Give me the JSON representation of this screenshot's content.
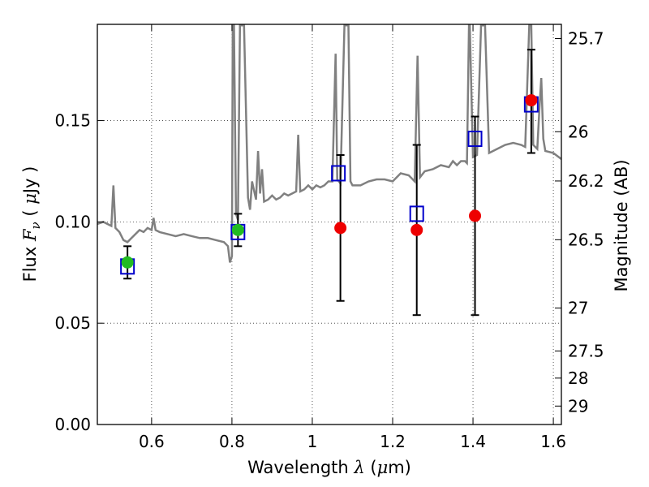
{
  "chart_data": {
    "type": "scatter",
    "xlabel": {
      "prefix": "Wavelength ",
      "symbol": "λ",
      "unit_open": " (",
      "unit_mu": "μ",
      "unit_rest": "m)"
    },
    "ylabel": {
      "prefix": "Flux ",
      "symbol": "F",
      "subscript": "ν",
      "unit_open": " ( ",
      "unit_mu": "μ",
      "unit_rest": "Jy )"
    },
    "y2label": "Magnitude (AB)",
    "xlim": [
      0.465,
      1.62
    ],
    "ylim": [
      0.0,
      0.1975
    ],
    "grid": true,
    "xticks": [
      0.6,
      0.8,
      1.0,
      1.2,
      1.4,
      1.6
    ],
    "xtick_labels": [
      "0.6",
      "0.8",
      "1",
      "1.2",
      "1.4",
      "1.6"
    ],
    "yticks": [
      0.0,
      0.05,
      0.1,
      0.15
    ],
    "ytick_labels": [
      "0.00",
      "0.05",
      "0.10",
      "0.15"
    ],
    "y2ticks": [
      {
        "label": "25.7",
        "flux": 0.1905
      },
      {
        "label": "26",
        "flux": 0.1445
      },
      {
        "label": "26.2",
        "flux": 0.1202
      },
      {
        "label": "26.5",
        "flux": 0.0912
      },
      {
        "label": "27",
        "flux": 0.0575
      },
      {
        "label": "27.5",
        "flux": 0.0363
      },
      {
        "label": "28",
        "flux": 0.0229
      },
      {
        "label": "29",
        "flux": 0.0091
      }
    ],
    "colors": {
      "template": "#808080",
      "model_box": "#0000cc",
      "observed_red": "#ee0000",
      "observed_green": "#22bb22",
      "errorbar": "#000000",
      "grid": "#333333"
    },
    "model_points": [
      {
        "x": 0.54,
        "y": 0.078
      },
      {
        "x": 0.815,
        "y": 0.095
      },
      {
        "x": 1.065,
        "y": 0.124
      },
      {
        "x": 1.26,
        "y": 0.104
      },
      {
        "x": 1.405,
        "y": 0.141
      },
      {
        "x": 1.545,
        "y": 0.158
      }
    ],
    "observed_points": [
      {
        "x": 0.54,
        "y": 0.08,
        "err_lo": 0.072,
        "err_hi": 0.088,
        "color": "green"
      },
      {
        "x": 0.815,
        "y": 0.096,
        "err_lo": 0.088,
        "err_hi": 0.104,
        "color": "green"
      },
      {
        "x": 1.07,
        "y": 0.097,
        "err_lo": 0.061,
        "err_hi": 0.133,
        "color": "red"
      },
      {
        "x": 1.26,
        "y": 0.096,
        "err_lo": 0.054,
        "err_hi": 0.138,
        "color": "red"
      },
      {
        "x": 1.405,
        "y": 0.103,
        "err_lo": 0.054,
        "err_hi": 0.152,
        "color": "red"
      },
      {
        "x": 1.545,
        "y": 0.16,
        "err_lo": 0.134,
        "err_hi": 0.185,
        "color": "red"
      }
    ],
    "template_spectrum": [
      [
        0.465,
        0.099
      ],
      [
        0.48,
        0.1
      ],
      [
        0.5,
        0.098
      ],
      [
        0.505,
        0.118
      ],
      [
        0.51,
        0.097
      ],
      [
        0.52,
        0.095
      ],
      [
        0.53,
        0.091
      ],
      [
        0.54,
        0.09
      ],
      [
        0.55,
        0.092
      ],
      [
        0.56,
        0.094
      ],
      [
        0.57,
        0.096
      ],
      [
        0.58,
        0.095
      ],
      [
        0.59,
        0.097
      ],
      [
        0.6,
        0.096
      ],
      [
        0.605,
        0.102
      ],
      [
        0.61,
        0.096
      ],
      [
        0.62,
        0.095
      ],
      [
        0.64,
        0.094
      ],
      [
        0.66,
        0.093
      ],
      [
        0.68,
        0.094
      ],
      [
        0.7,
        0.093
      ],
      [
        0.72,
        0.092
      ],
      [
        0.74,
        0.092
      ],
      [
        0.76,
        0.091
      ],
      [
        0.78,
        0.09
      ],
      [
        0.79,
        0.088
      ],
      [
        0.795,
        0.08
      ],
      [
        0.8,
        0.083
      ],
      [
        0.802,
        0.197
      ],
      [
        0.805,
        0.197
      ],
      [
        0.81,
        0.104
      ],
      [
        0.815,
        0.101
      ],
      [
        0.82,
        0.197
      ],
      [
        0.83,
        0.197
      ],
      [
        0.84,
        0.112
      ],
      [
        0.845,
        0.106
      ],
      [
        0.85,
        0.12
      ],
      [
        0.86,
        0.111
      ],
      [
        0.865,
        0.135
      ],
      [
        0.87,
        0.114
      ],
      [
        0.875,
        0.126
      ],
      [
        0.88,
        0.11
      ],
      [
        0.89,
        0.111
      ],
      [
        0.9,
        0.113
      ],
      [
        0.91,
        0.111
      ],
      [
        0.92,
        0.112
      ],
      [
        0.93,
        0.114
      ],
      [
        0.94,
        0.113
      ],
      [
        0.95,
        0.114
      ],
      [
        0.96,
        0.115
      ],
      [
        0.965,
        0.143
      ],
      [
        0.97,
        0.115
      ],
      [
        0.98,
        0.116
      ],
      [
        0.99,
        0.118
      ],
      [
        1.0,
        0.116
      ],
      [
        1.01,
        0.118
      ],
      [
        1.02,
        0.117
      ],
      [
        1.03,
        0.118
      ],
      [
        1.04,
        0.12
      ],
      [
        1.05,
        0.12
      ],
      [
        1.058,
        0.183
      ],
      [
        1.062,
        0.121
      ],
      [
        1.07,
        0.119
      ],
      [
        1.08,
        0.197
      ],
      [
        1.09,
        0.197
      ],
      [
        1.095,
        0.12
      ],
      [
        1.1,
        0.118
      ],
      [
        1.12,
        0.118
      ],
      [
        1.14,
        0.12
      ],
      [
        1.16,
        0.121
      ],
      [
        1.18,
        0.121
      ],
      [
        1.2,
        0.12
      ],
      [
        1.22,
        0.124
      ],
      [
        1.24,
        0.123
      ],
      [
        1.255,
        0.12
      ],
      [
        1.262,
        0.182
      ],
      [
        1.268,
        0.122
      ],
      [
        1.28,
        0.125
      ],
      [
        1.3,
        0.126
      ],
      [
        1.32,
        0.128
      ],
      [
        1.34,
        0.127
      ],
      [
        1.35,
        0.13
      ],
      [
        1.36,
        0.128
      ],
      [
        1.37,
        0.13
      ],
      [
        1.38,
        0.13
      ],
      [
        1.385,
        0.129
      ],
      [
        1.39,
        0.197
      ],
      [
        1.392,
        0.197
      ],
      [
        1.4,
        0.132
      ],
      [
        1.41,
        0.133
      ],
      [
        1.42,
        0.197
      ],
      [
        1.43,
        0.197
      ],
      [
        1.44,
        0.134
      ],
      [
        1.46,
        0.136
      ],
      [
        1.48,
        0.138
      ],
      [
        1.5,
        0.139
      ],
      [
        1.52,
        0.138
      ],
      [
        1.53,
        0.137
      ],
      [
        1.54,
        0.197
      ],
      [
        1.545,
        0.197
      ],
      [
        1.55,
        0.138
      ],
      [
        1.56,
        0.136
      ],
      [
        1.565,
        0.155
      ],
      [
        1.57,
        0.171
      ],
      [
        1.575,
        0.141
      ],
      [
        1.58,
        0.135
      ],
      [
        1.6,
        0.134
      ],
      [
        1.62,
        0.131
      ]
    ]
  }
}
